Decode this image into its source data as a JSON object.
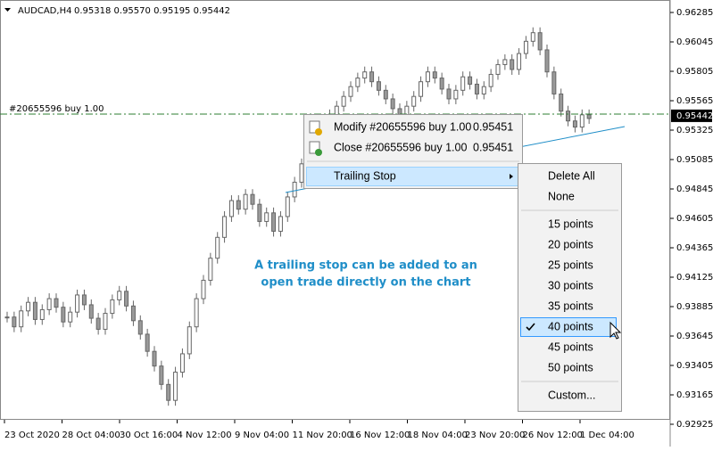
{
  "header": {
    "symbol": "AUDCAD,H4",
    "quote": "0.95318 0.95570 0.95195 0.95442"
  },
  "price_axis": {
    "ticks": [
      0.96285,
      0.96045,
      0.95805,
      0.95565,
      0.95325,
      0.95085,
      0.94845,
      0.94605,
      0.94365,
      0.94125,
      0.93885,
      0.93645,
      0.93405,
      0.93165,
      0.92925
    ],
    "current_price": 0.95442
  },
  "time_axis": {
    "labels": [
      "23 Oct 2020",
      "28 Oct 04:00",
      "30 Oct 16:00",
      "4 Nov 12:00",
      "9 Nov 04:00",
      "11 Nov 20:00",
      "16 Nov 12:00",
      "18 Nov 04:00",
      "23 Nov 20:00",
      "26 Nov 12:00",
      "1 Dec 04:00"
    ]
  },
  "candles": {
    "closes": [
      0.938,
      0.9372,
      0.9385,
      0.9392,
      0.9378,
      0.9386,
      0.9395,
      0.9388,
      0.9376,
      0.9384,
      0.9398,
      0.939,
      0.9379,
      0.937,
      0.9383,
      0.9394,
      0.9401,
      0.9389,
      0.9377,
      0.9366,
      0.9352,
      0.934,
      0.9325,
      0.9312,
      0.9335,
      0.935,
      0.9372,
      0.9395,
      0.941,
      0.9428,
      0.9445,
      0.9462,
      0.9475,
      0.9468,
      0.948,
      0.9472,
      0.9458,
      0.9465,
      0.945,
      0.9462,
      0.9478,
      0.949,
      0.9505,
      0.9515,
      0.9528,
      0.9535,
      0.9545,
      0.9552,
      0.956,
      0.9568,
      0.9575,
      0.958,
      0.9572,
      0.9565,
      0.9558,
      0.955,
      0.9545,
      0.9552,
      0.956,
      0.9572,
      0.958,
      0.9575,
      0.9566,
      0.9558,
      0.9565,
      0.9576,
      0.957,
      0.9562,
      0.9568,
      0.9578,
      0.9586,
      0.959,
      0.9582,
      0.9595,
      0.9605,
      0.9612,
      0.9598,
      0.958,
      0.9562,
      0.9548,
      0.954,
      0.9535,
      0.9545,
      0.9542
    ]
  },
  "order_line": {
    "label": "#20655596 buy 1.00"
  },
  "annotation": {
    "lines": [
      "A trailing stop can be added to an",
      "open trade directly on the chart"
    ]
  },
  "context_menu": {
    "items": [
      {
        "label": "Modify #20655596 buy 1.00",
        "price": "0.95451"
      },
      {
        "label": "Close #20655596 buy 1.00",
        "price": "0.95451"
      }
    ],
    "submenu_item": "Trailing Stop"
  },
  "submenu": {
    "groups": [
      [
        "Delete All",
        "None"
      ],
      [
        "15 points",
        "20 points",
        "25 points",
        "30 points",
        "35 points",
        "40 points",
        "45 points",
        "50 points"
      ],
      [
        "Custom..."
      ]
    ],
    "checked": [
      1,
      5
    ]
  }
}
